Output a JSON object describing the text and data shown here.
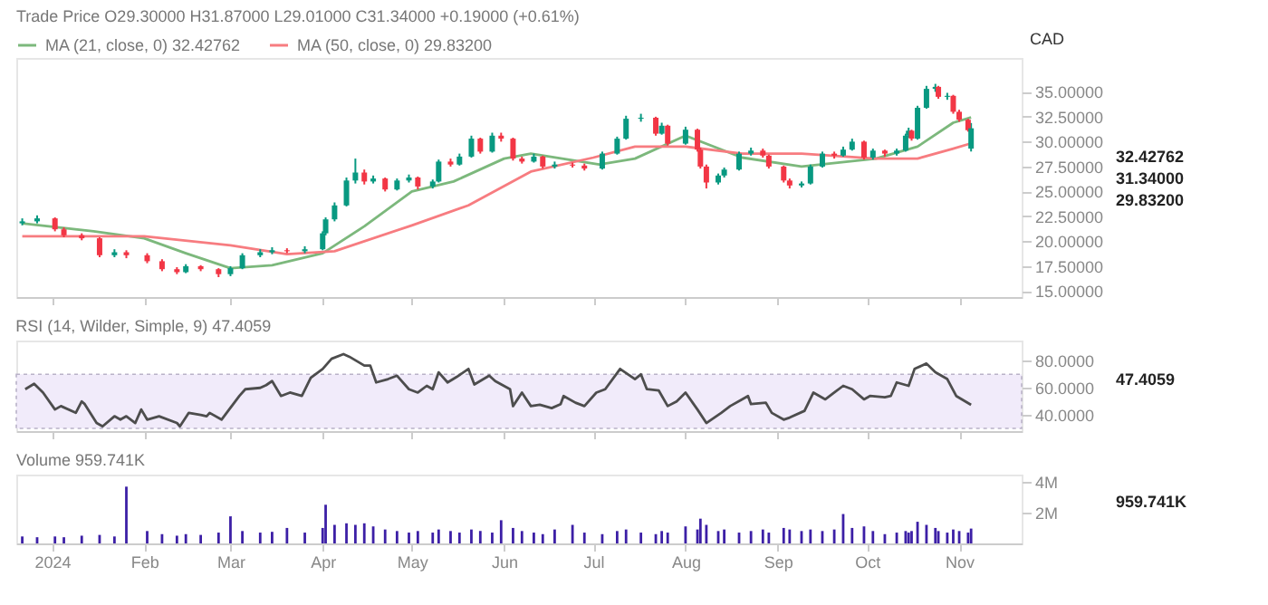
{
  "chart_data": [
    {
      "type": "candlestick",
      "title": "Trade Price  O29.30000  H31.87000  L29.01000  C31.34000  +0.19000 (+0.61%)",
      "ylabel": "CAD",
      "legend": "top",
      "tick_labels": "y",
      "x": [
        "2023-12-22",
        "2023-12-27",
        "2024-01-02",
        "2024-01-05",
        "2024-01-11",
        "2024-01-17",
        "2024-01-22",
        "2024-01-26",
        "2024-02-02",
        "2024-02-07",
        "2024-02-12",
        "2024-02-15",
        "2024-02-20",
        "2024-02-26",
        "2024-03-01",
        "2024-03-05",
        "2024-03-11",
        "2024-03-15",
        "2024-03-20",
        "2024-03-26",
        "2024-04-01",
        "2024-04-02",
        "2024-04-05",
        "2024-04-09",
        "2024-04-12",
        "2024-04-15",
        "2024-04-18",
        "2024-04-22",
        "2024-04-26",
        "2024-04-30",
        "2024-05-03",
        "2024-05-08",
        "2024-05-10",
        "2024-05-14",
        "2024-05-17",
        "2024-05-21",
        "2024-05-24",
        "2024-05-28",
        "2024-05-31",
        "2024-06-04",
        "2024-06-07",
        "2024-06-11",
        "2024-06-14",
        "2024-06-18",
        "2024-06-24",
        "2024-06-28",
        "2024-07-04",
        "2024-07-09",
        "2024-07-12",
        "2024-07-17",
        "2024-07-22",
        "2024-07-24",
        "2024-07-26",
        "2024-08-01",
        "2024-08-05",
        "2024-08-06",
        "2024-08-08",
        "2024-08-12",
        "2024-08-14",
        "2024-08-19",
        "2024-08-23",
        "2024-08-27",
        "2024-08-29",
        "2024-09-03",
        "2024-09-05",
        "2024-09-09",
        "2024-09-12",
        "2024-09-16",
        "2024-09-20",
        "2024-09-23",
        "2024-09-26",
        "2024-09-30",
        "2024-10-03",
        "2024-10-07",
        "2024-10-11",
        "2024-10-14",
        "2024-10-15",
        "2024-10-16",
        "2024-10-18",
        "2024-10-21",
        "2024-10-24",
        "2024-10-25",
        "2024-10-28",
        "2024-10-30",
        "2024-11-01",
        "2024-11-04",
        "2024-11-05"
      ],
      "ohlc": [
        [
          21.8,
          22.3,
          21.6,
          22.0
        ],
        [
          22.0,
          22.6,
          21.8,
          22.3
        ],
        [
          22.3,
          22.4,
          21.0,
          21.2
        ],
        [
          21.2,
          21.4,
          20.4,
          20.6
        ],
        [
          20.6,
          20.8,
          20.1,
          20.3
        ],
        [
          20.3,
          20.4,
          18.4,
          18.6
        ],
        [
          18.6,
          19.2,
          18.4,
          18.9
        ],
        [
          18.9,
          19.1,
          18.3,
          18.6
        ],
        [
          18.6,
          18.8,
          17.8,
          18.0
        ],
        [
          18.0,
          18.2,
          17.0,
          17.2
        ],
        [
          17.2,
          17.4,
          16.7,
          16.9
        ],
        [
          16.9,
          17.7,
          16.8,
          17.5
        ],
        [
          17.5,
          17.6,
          17.0,
          17.2
        ],
        [
          17.2,
          17.3,
          16.4,
          16.7
        ],
        [
          16.7,
          17.5,
          16.5,
          17.3
        ],
        [
          17.3,
          18.8,
          17.2,
          18.6
        ],
        [
          18.6,
          19.2,
          18.4,
          18.9
        ],
        [
          18.9,
          19.4,
          18.7,
          19.1
        ],
        [
          19.1,
          19.3,
          18.8,
          19.0
        ],
        [
          19.0,
          19.5,
          18.8,
          19.2
        ],
        [
          19.2,
          21.0,
          19.1,
          20.8
        ],
        [
          20.8,
          22.4,
          20.6,
          22.2
        ],
        [
          22.2,
          23.9,
          22.0,
          23.6
        ],
        [
          23.6,
          26.4,
          23.5,
          26.1
        ],
        [
          26.1,
          28.3,
          25.8,
          26.9
        ],
        [
          26.9,
          27.2,
          25.7,
          26.0
        ],
        [
          26.0,
          26.6,
          25.8,
          26.3
        ],
        [
          26.3,
          26.4,
          25.0,
          25.2
        ],
        [
          25.2,
          26.3,
          25.1,
          26.1
        ],
        [
          26.1,
          26.7,
          25.9,
          26.4
        ],
        [
          26.4,
          26.5,
          25.2,
          25.5
        ],
        [
          25.5,
          26.2,
          25.3,
          26.0
        ],
        [
          26.0,
          28.2,
          25.9,
          28.0
        ],
        [
          28.0,
          28.3,
          27.5,
          27.7
        ],
        [
          27.7,
          28.8,
          27.6,
          28.5
        ],
        [
          28.5,
          30.6,
          28.4,
          30.3
        ],
        [
          30.3,
          30.4,
          28.8,
          29.0
        ],
        [
          29.0,
          30.9,
          28.9,
          30.6
        ],
        [
          30.6,
          30.9,
          30.0,
          30.3
        ],
        [
          30.3,
          30.4,
          28.1,
          28.3
        ],
        [
          28.3,
          28.5,
          27.8,
          28.0
        ],
        [
          28.0,
          28.8,
          27.9,
          28.5
        ],
        [
          28.5,
          28.6,
          27.3,
          27.5
        ],
        [
          27.5,
          28.0,
          27.3,
          27.7
        ],
        [
          27.7,
          27.9,
          27.4,
          27.6
        ],
        [
          27.6,
          27.8,
          27.1,
          27.3
        ],
        [
          27.3,
          29.0,
          27.2,
          28.8
        ],
        [
          28.8,
          30.5,
          28.7,
          30.3
        ],
        [
          30.3,
          32.6,
          30.2,
          32.3
        ],
        [
          32.3,
          32.8,
          32.0,
          32.4
        ],
        [
          32.4,
          32.5,
          30.6,
          30.8
        ],
        [
          30.8,
          31.9,
          30.7,
          31.6
        ],
        [
          31.6,
          31.7,
          29.6,
          29.8
        ],
        [
          29.8,
          31.5,
          29.7,
          31.2
        ],
        [
          31.2,
          31.3,
          29.0,
          29.2
        ],
        [
          29.2,
          29.4,
          27.3,
          27.5
        ],
        [
          27.5,
          27.7,
          25.3,
          25.9
        ],
        [
          25.9,
          26.8,
          25.7,
          26.6
        ],
        [
          26.6,
          27.4,
          26.4,
          27.2
        ],
        [
          27.2,
          29.0,
          27.1,
          28.8
        ],
        [
          28.8,
          29.4,
          28.6,
          29.1
        ],
        [
          29.1,
          29.3,
          28.4,
          28.6
        ],
        [
          28.6,
          28.7,
          27.3,
          27.5
        ],
        [
          27.5,
          27.6,
          25.9,
          26.1
        ],
        [
          26.1,
          26.3,
          25.3,
          25.6
        ],
        [
          25.6,
          26.0,
          25.4,
          25.8
        ],
        [
          25.8,
          27.7,
          25.7,
          27.5
        ],
        [
          27.5,
          29.0,
          27.4,
          28.8
        ],
        [
          28.8,
          29.0,
          28.3,
          28.6
        ],
        [
          28.6,
          29.5,
          28.5,
          29.2
        ],
        [
          29.2,
          30.3,
          29.1,
          30.0
        ],
        [
          30.0,
          30.1,
          28.2,
          28.4
        ],
        [
          28.4,
          29.3,
          28.2,
          29.1
        ],
        [
          29.1,
          29.2,
          28.5,
          28.8
        ],
        [
          28.8,
          29.3,
          28.6,
          29.1
        ],
        [
          29.1,
          30.8,
          29.0,
          30.6
        ],
        [
          30.6,
          31.4,
          30.4,
          31.1
        ],
        [
          31.1,
          31.2,
          30.1,
          30.3
        ],
        [
          30.3,
          33.6,
          30.2,
          33.4
        ],
        [
          33.4,
          35.6,
          33.3,
          35.3
        ],
        [
          35.3,
          35.8,
          35.0,
          35.5
        ],
        [
          35.5,
          35.6,
          34.3,
          34.5
        ],
        [
          34.5,
          34.9,
          34.2,
          34.6
        ],
        [
          34.6,
          34.7,
          32.8,
          33.0
        ],
        [
          33.0,
          33.2,
          32.0,
          32.2
        ],
        [
          32.2,
          32.3,
          31.0,
          31.15
        ],
        [
          29.3,
          31.87,
          29.01,
          31.34
        ]
      ],
      "colors": [
        "#089981",
        "#089981",
        "#f23645",
        "#f23645",
        "#f23645",
        "#f23645",
        "#089981",
        "#f23645",
        "#f23645",
        "#f23645",
        "#f23645",
        "#089981",
        "#f23645",
        "#f23645",
        "#089981",
        "#089981",
        "#089981",
        "#089981",
        "#f23645",
        "#089981",
        "#089981",
        "#089981",
        "#089981",
        "#089981",
        "#089981",
        "#f23645",
        "#089981",
        "#f23645",
        "#089981",
        "#089981",
        "#f23645",
        "#089981",
        "#089981",
        "#f23645",
        "#089981",
        "#089981",
        "#f23645",
        "#089981",
        "#f23645",
        "#f23645",
        "#f23645",
        "#089981",
        "#f23645",
        "#089981",
        "#f23645",
        "#f23645",
        "#089981",
        "#089981",
        "#089981",
        "#089981",
        "#f23645",
        "#089981",
        "#f23645",
        "#089981",
        "#f23645",
        "#f23645",
        "#f23645",
        "#089981",
        "#089981",
        "#089981",
        "#089981",
        "#f23645",
        "#f23645",
        "#f23645",
        "#f23645",
        "#089981",
        "#089981",
        "#089981",
        "#f23645",
        "#089981",
        "#089981",
        "#f23645",
        "#089981",
        "#f23645",
        "#089981",
        "#089981",
        "#089981",
        "#f23645",
        "#089981",
        "#089981",
        "#089981",
        "#f23645",
        "#089981",
        "#f23645",
        "#f23645",
        "#f23645",
        "#089981"
      ],
      "series": [
        {
          "name": "MA (21, close, 0)  32.42762",
          "type": "line",
          "color": "#7cb87c",
          "x": [
            "2023-12-22",
            "2024-01-15",
            "2024-02-01",
            "2024-02-15",
            "2024-03-01",
            "2024-03-15",
            "2024-04-01",
            "2024-04-15",
            "2024-05-01",
            "2024-05-15",
            "2024-06-01",
            "2024-06-10",
            "2024-07-03",
            "2024-07-15",
            "2024-08-01",
            "2024-08-20",
            "2024-09-09",
            "2024-10-04",
            "2024-10-18",
            "2024-10-30",
            "2024-11-05"
          ],
          "values": [
            21.8,
            21.0,
            20.3,
            18.8,
            17.3,
            17.6,
            18.8,
            21.5,
            25.0,
            26.0,
            28.3,
            28.8,
            27.7,
            28.3,
            30.6,
            28.4,
            27.5,
            28.3,
            29.5,
            31.9,
            32.42762
          ]
        },
        {
          "name": "MA (50, close, 0)  29.83200",
          "type": "line",
          "color": "#f77c80",
          "x": [
            "2023-12-22",
            "2024-02-01",
            "2024-03-01",
            "2024-03-20",
            "2024-04-05",
            "2024-05-01",
            "2024-05-20",
            "2024-06-10",
            "2024-07-01",
            "2024-07-15",
            "2024-08-01",
            "2024-08-20",
            "2024-09-09",
            "2024-10-04",
            "2024-10-18",
            "2024-10-30",
            "2024-11-05"
          ],
          "values": [
            20.5,
            20.5,
            19.6,
            18.7,
            19.0,
            21.6,
            23.6,
            27.0,
            28.4,
            29.5,
            29.5,
            28.8,
            28.8,
            28.3,
            28.3,
            29.3,
            29.832
          ]
        }
      ],
      "xlim": [
        "2023-12-20",
        "2024-11-22"
      ],
      "ylim": [
        14.4,
        38.4
      ],
      "xticks": [
        {
          "value": "2024-01-01",
          "label": null
        },
        {
          "value": "2024-02-01",
          "label": null
        },
        {
          "value": "2024-03-01",
          "label": null
        },
        {
          "value": "2024-04-01",
          "label": null
        },
        {
          "value": "2024-05-01",
          "label": null
        },
        {
          "value": "2024-06-01",
          "label": null
        },
        {
          "value": "2024-07-01",
          "label": null
        },
        {
          "value": "2024-08-01",
          "label": null
        },
        {
          "value": "2024-09-01",
          "label": null
        },
        {
          "value": "2024-10-01",
          "label": null
        },
        {
          "value": "2024-11-01",
          "label": null
        }
      ],
      "yticks": [
        {
          "value": 15,
          "label": "15.00000"
        },
        {
          "value": 17.5,
          "label": "17.50000"
        },
        {
          "value": 20,
          "label": "20.00000"
        },
        {
          "value": 22.5,
          "label": "22.50000"
        },
        {
          "value": 25,
          "label": "25.00000"
        },
        {
          "value": 27.5,
          "label": "27.50000"
        },
        {
          "value": 30,
          "label": "30.00000"
        },
        {
          "value": 32.5,
          "label": "32.50000"
        },
        {
          "value": 35,
          "label": "35.00000"
        }
      ],
      "annotations": [
        "32.42762",
        "31.34000",
        "29.83200"
      ]
    },
    {
      "type": "line",
      "title": "RSI (14, Wilder, Simple, 9)  47.4059",
      "tick_labels": "y",
      "series": [
        {
          "color": "#4d4d4d",
          "x": [
            "2023-12-23",
            "2023-12-26",
            "2023-12-29",
            "2024-01-02",
            "2024-01-04",
            "2024-01-09",
            "2024-01-11",
            "2024-01-12",
            "2024-01-16",
            "2024-01-18",
            "2024-01-22",
            "2024-01-24",
            "2024-01-26",
            "2024-01-29",
            "2024-01-31",
            "2024-02-02",
            "2024-02-06",
            "2024-02-12",
            "2024-02-13",
            "2024-02-16",
            "2024-02-20",
            "2024-02-22",
            "2024-02-23",
            "2024-02-27",
            "2024-03-04",
            "2024-03-06",
            "2024-03-11",
            "2024-03-13",
            "2024-03-15",
            "2024-03-18",
            "2024-03-21",
            "2024-03-25",
            "2024-03-28",
            "2024-04-01",
            "2024-04-04",
            "2024-04-08",
            "2024-04-10",
            "2024-04-15",
            "2024-04-17",
            "2024-04-19",
            "2024-04-23",
            "2024-04-26",
            "2024-04-30",
            "2024-05-03",
            "2024-05-06",
            "2024-05-08",
            "2024-05-10",
            "2024-05-13",
            "2024-05-16",
            "2024-05-20",
            "2024-05-22",
            "2024-05-27",
            "2024-05-29",
            "2024-06-03",
            "2024-06-04",
            "2024-06-07",
            "2024-06-10",
            "2024-06-13",
            "2024-06-17",
            "2024-06-20",
            "2024-06-21",
            "2024-06-25",
            "2024-06-28",
            "2024-07-02",
            "2024-07-05",
            "2024-07-10",
            "2024-07-15",
            "2024-07-17",
            "2024-07-19",
            "2024-07-23",
            "2024-07-26",
            "2024-07-29",
            "2024-08-01",
            "2024-08-05",
            "2024-08-08",
            "2024-08-13",
            "2024-08-16",
            "2024-08-20",
            "2024-08-22",
            "2024-08-23",
            "2024-08-28",
            "2024-08-30",
            "2024-09-03",
            "2024-09-05",
            "2024-09-10",
            "2024-09-13",
            "2024-09-17",
            "2024-09-20",
            "2024-09-23",
            "2024-09-26",
            "2024-09-30",
            "2024-10-02",
            "2024-10-07",
            "2024-10-09",
            "2024-10-11",
            "2024-10-15",
            "2024-10-17",
            "2024-10-21",
            "2024-10-24",
            "2024-10-28",
            "2024-10-31",
            "2024-11-05"
          ],
          "values": [
            59,
            63,
            56.5,
            44,
            46.5,
            41.5,
            50,
            48,
            34,
            31.5,
            39,
            36.5,
            39,
            34,
            44,
            36.5,
            39,
            34,
            31.5,
            41.5,
            40,
            39,
            41.5,
            36.5,
            54,
            59,
            60,
            62,
            65,
            54,
            56.5,
            54,
            67.5,
            74,
            81.5,
            85,
            83,
            76.5,
            76.5,
            64,
            66.5,
            69,
            59,
            56.5,
            61.5,
            59,
            71.5,
            64,
            68,
            74,
            62.5,
            69,
            65,
            59,
            46.5,
            56.5,
            46.5,
            47.5,
            45,
            48,
            54,
            49,
            46.5,
            56.5,
            59,
            74,
            66.5,
            70,
            59,
            58,
            46.5,
            50,
            56.5,
            44,
            34,
            41.5,
            46.5,
            51.5,
            54,
            48,
            49,
            41.5,
            36.5,
            38,
            43,
            56.5,
            51.5,
            56.5,
            61.5,
            59,
            51.5,
            54,
            53,
            54,
            64,
            61.5,
            74,
            78,
            71.5,
            66.5,
            54,
            47.4059
          ]
        }
      ],
      "bands": [
        {
          "axis": "y",
          "from": 30,
          "to": 70,
          "color": "#f1ebfa"
        }
      ],
      "xlim": [
        "2023-12-20",
        "2024-11-22"
      ],
      "ylim": [
        28,
        95
      ],
      "xticks": [
        {
          "value": "2024-01-01",
          "label": null
        },
        {
          "value": "2024-02-01",
          "label": null
        },
        {
          "value": "2024-03-01",
          "label": null
        },
        {
          "value": "2024-04-01",
          "label": null
        },
        {
          "value": "2024-05-01",
          "label": null
        },
        {
          "value": "2024-06-01",
          "label": null
        },
        {
          "value": "2024-07-01",
          "label": null
        },
        {
          "value": "2024-08-01",
          "label": null
        },
        {
          "value": "2024-09-01",
          "label": null
        },
        {
          "value": "2024-10-01",
          "label": null
        },
        {
          "value": "2024-11-01",
          "label": null
        }
      ],
      "yticks": [
        {
          "value": 40,
          "label": "40.0000"
        },
        {
          "value": 60,
          "label": "60.0000"
        },
        {
          "value": 80,
          "label": "80.0000"
        }
      ],
      "annotations": [
        "47.4059"
      ]
    },
    {
      "type": "bar",
      "title": "Volume  959.741K",
      "color": "#3c1fa6",
      "x": [
        "2023-12-22",
        "2023-12-27",
        "2024-01-02",
        "2024-01-05",
        "2024-01-11",
        "2024-01-17",
        "2024-01-22",
        "2024-01-26",
        "2024-02-02",
        "2024-02-07",
        "2024-02-12",
        "2024-02-15",
        "2024-02-20",
        "2024-02-26",
        "2024-03-01",
        "2024-03-05",
        "2024-03-11",
        "2024-03-15",
        "2024-03-20",
        "2024-03-26",
        "2024-04-01",
        "2024-04-02",
        "2024-04-05",
        "2024-04-09",
        "2024-04-12",
        "2024-04-15",
        "2024-04-18",
        "2024-04-22",
        "2024-04-26",
        "2024-04-30",
        "2024-05-03",
        "2024-05-08",
        "2024-05-10",
        "2024-05-14",
        "2024-05-17",
        "2024-05-21",
        "2024-05-24",
        "2024-05-28",
        "2024-05-31",
        "2024-06-04",
        "2024-06-07",
        "2024-06-11",
        "2024-06-14",
        "2024-06-18",
        "2024-06-24",
        "2024-06-28",
        "2024-07-04",
        "2024-07-09",
        "2024-07-12",
        "2024-07-17",
        "2024-07-22",
        "2024-07-24",
        "2024-07-26",
        "2024-08-01",
        "2024-08-05",
        "2024-08-06",
        "2024-08-08",
        "2024-08-12",
        "2024-08-14",
        "2024-08-19",
        "2024-08-23",
        "2024-08-27",
        "2024-08-29",
        "2024-09-03",
        "2024-09-05",
        "2024-09-09",
        "2024-09-12",
        "2024-09-16",
        "2024-09-20",
        "2024-09-23",
        "2024-09-26",
        "2024-09-30",
        "2024-10-03",
        "2024-10-07",
        "2024-10-11",
        "2024-10-14",
        "2024-10-15",
        "2024-10-16",
        "2024-10-18",
        "2024-10-21",
        "2024-10-24",
        "2024-10-25",
        "2024-10-28",
        "2024-10-30",
        "2024-11-01",
        "2024-11-04",
        "2024-11-05"
      ],
      "values": [
        0.45,
        0.4,
        0.45,
        0.4,
        0.5,
        0.55,
        0.45,
        3.67,
        0.8,
        0.6,
        0.5,
        0.6,
        0.55,
        0.7,
        1.75,
        0.8,
        0.7,
        0.75,
        1.0,
        0.7,
        1.0,
        2.5,
        1.2,
        1.3,
        1.2,
        1.3,
        1.1,
        0.9,
        0.8,
        0.7,
        0.8,
        0.7,
        0.9,
        0.8,
        0.7,
        0.9,
        0.8,
        0.7,
        1.5,
        1.0,
        0.8,
        0.7,
        0.6,
        0.9,
        1.2,
        0.7,
        0.6,
        0.8,
        0.9,
        0.7,
        0.6,
        0.8,
        0.7,
        1.1,
        0.9,
        1.6,
        1.2,
        0.8,
        0.9,
        0.7,
        0.8,
        0.9,
        0.7,
        1.0,
        0.9,
        0.8,
        0.9,
        0.8,
        0.9,
        1.9,
        1.0,
        1.1,
        0.8,
        0.6,
        0.7,
        0.8,
        0.7,
        0.8,
        1.4,
        1.2,
        1.0,
        0.8,
        0.7,
        0.9,
        0.8,
        0.7,
        0.959741
      ],
      "xlim": [
        "2023-12-20",
        "2024-11-22"
      ],
      "ylim": [
        0,
        4.45
      ],
      "xticks": [
        {
          "value": "2024-01-01",
          "label": "2024"
        },
        {
          "value": "2024-02-01",
          "label": "Feb"
        },
        {
          "value": "2024-03-01",
          "label": "Mar"
        },
        {
          "value": "2024-04-01",
          "label": "Apr"
        },
        {
          "value": "2024-05-01",
          "label": "May"
        },
        {
          "value": "2024-06-01",
          "label": "Jun"
        },
        {
          "value": "2024-07-01",
          "label": "Jul"
        },
        {
          "value": "2024-08-01",
          "label": "Aug"
        },
        {
          "value": "2024-09-01",
          "label": "Sep"
        },
        {
          "value": "2024-10-01",
          "label": "Oct"
        },
        {
          "value": "2024-11-01",
          "label": "Nov"
        }
      ],
      "yticks": [
        {
          "value": 2,
          "label": "2M"
        },
        {
          "value": 4,
          "label": "4M"
        }
      ],
      "annotations": [
        "959.741K"
      ]
    }
  ]
}
